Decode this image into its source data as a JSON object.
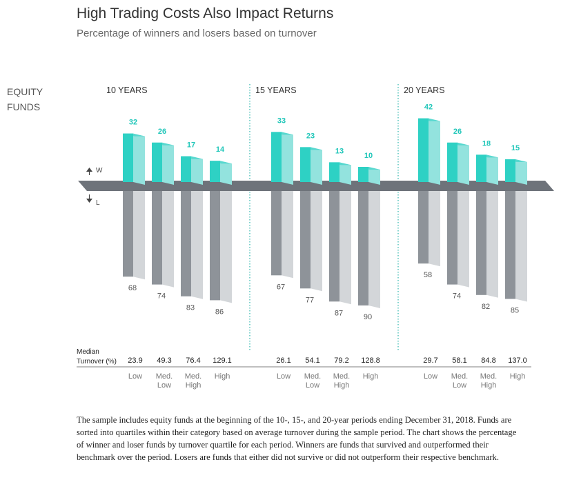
{
  "title": "High Trading Costs Also Impact Returns",
  "subtitle": "Percentage of winners and losers based on turnover",
  "row_label_line1": "EQUITY",
  "row_label_line2": "FUNDS",
  "axis_w": "W",
  "axis_l": "L",
  "median_line1": "Median",
  "median_line2": "Turnover (%)",
  "caption": "The sample includes equity funds at the beginning of the 10-, 15-, and 20-year periods ending December 31, 2018. Funds are sorted into quartiles within their category based on average turnover during the sample period. The chart shows the percentage of winner and loser funds by turnover quartile for each period. Winners are funds that survived and outperformed their benchmark over the period. Losers are funds that either did not survive or did not outperform their respective benchmark.",
  "colors": {
    "winner_front": "#2ed1c4",
    "winner_side": "#93e3de",
    "loser_front": "#8e9399",
    "loser_side": "#d3d6d9",
    "axis_band": "#6e737a",
    "winner_label": "#22c7ba",
    "loser_label": "#555555",
    "divider": "#2ab5ac"
  },
  "chart_data": {
    "type": "bar",
    "groups": [
      {
        "label": "10 YEARS",
        "quartiles": [
          {
            "line1": "Low",
            "line2": ""
          },
          {
            "line1": "Med.",
            "line2": "Low"
          },
          {
            "line1": "Med.",
            "line2": "High"
          },
          {
            "line1": "High",
            "line2": ""
          }
        ],
        "winners": [
          32,
          26,
          17,
          14
        ],
        "losers": [
          68,
          74,
          83,
          86
        ],
        "turnover": [
          "23.9",
          "49.3",
          "76.4",
          "129.1"
        ]
      },
      {
        "label": "15 YEARS",
        "quartiles": [
          {
            "line1": "Low",
            "line2": ""
          },
          {
            "line1": "Med.",
            "line2": "Low"
          },
          {
            "line1": "Med.",
            "line2": "High"
          },
          {
            "line1": "High",
            "line2": ""
          }
        ],
        "winners": [
          33,
          23,
          13,
          10
        ],
        "losers": [
          67,
          77,
          87,
          90
        ],
        "turnover": [
          "26.1",
          "54.1",
          "79.2",
          "128.8"
        ]
      },
      {
        "label": "20 YEARS",
        "quartiles": [
          {
            "line1": "Low",
            "line2": ""
          },
          {
            "line1": "Med.",
            "line2": "Low"
          },
          {
            "line1": "Med.",
            "line2": "High"
          },
          {
            "line1": "High",
            "line2": ""
          }
        ],
        "winners": [
          42,
          26,
          18,
          15
        ],
        "losers": [
          58,
          74,
          82,
          85
        ],
        "turnover": [
          "29.7",
          "58.1",
          "84.8",
          "137.0"
        ]
      }
    ]
  }
}
